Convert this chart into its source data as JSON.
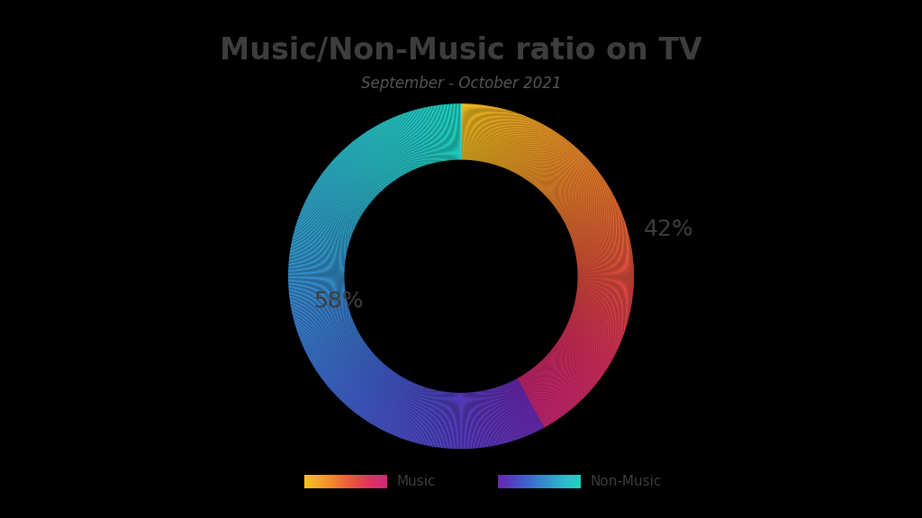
{
  "title": "Music/Non-Music ratio on TV",
  "subtitle": "September - October 2021",
  "music_pct": 42,
  "nonmusic_pct": 58,
  "background_color": "#000000",
  "title_color": "#3d3d3d",
  "subtitle_color": "#555555",
  "label_color": "#3d3d3d",
  "title_fontsize": 24,
  "subtitle_fontsize": 12,
  "label_fontsize": 18,
  "legend_fontsize": 11,
  "music_colors": [
    "#f5c020",
    "#f5a028",
    "#f07830",
    "#e85040",
    "#e03060",
    "#d02878"
  ],
  "nonmusic_colors": [
    "#6a28b0",
    "#5040c0",
    "#4060cc",
    "#3880cc",
    "#30a0c8",
    "#28c0c8",
    "#20d0c0"
  ],
  "donut_outer": 2.0,
  "donut_inner": 1.35,
  "n_steps": 500
}
